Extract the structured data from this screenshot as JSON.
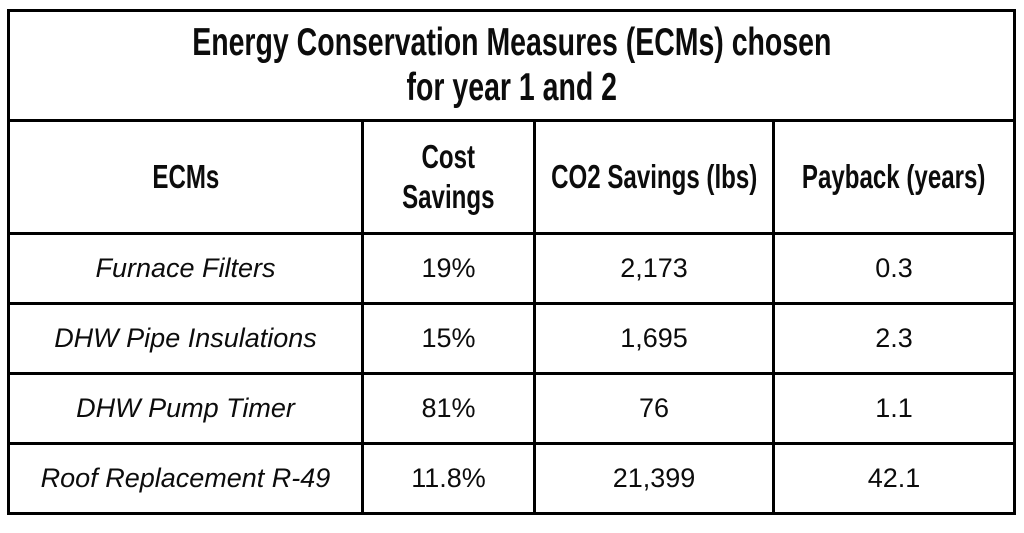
{
  "table": {
    "title": "Energy Conservation Measures (ECMs) chosen\nfor year 1 and 2",
    "headers": [
      "ECMs",
      "Cost\nSavings",
      "CO2 Savings (lbs)",
      "Payback (years)"
    ],
    "rows": [
      [
        "Furnace Filters",
        "19%",
        "2,173",
        "0.3"
      ],
      [
        "DHW Pipe Insulations",
        "15%",
        "1,695",
        "2.3"
      ],
      [
        "DHW Pump Timer",
        "81%",
        "76",
        "1.1"
      ],
      [
        "Roof Replacement R-49",
        "11.8%",
        "21,399",
        "42.1"
      ]
    ]
  },
  "chart_data": {
    "type": "table",
    "title": "Energy Conservation Measures (ECMs) chosen for year 1 and 2",
    "columns": [
      "ECMs",
      "Cost Savings",
      "CO2 Savings (lbs)",
      "Payback (years)"
    ],
    "rows": [
      {
        "ecm": "Furnace Filters",
        "cost_savings_pct": 19,
        "co2_savings_lbs": 2173,
        "payback_years": 0.3
      },
      {
        "ecm": "DHW Pipe Insulations",
        "cost_savings_pct": 15,
        "co2_savings_lbs": 1695,
        "payback_years": 2.3
      },
      {
        "ecm": "DHW Pump Timer",
        "cost_savings_pct": 81,
        "co2_savings_lbs": 76,
        "payback_years": 1.1
      },
      {
        "ecm": "Roof Replacement R-49",
        "cost_savings_pct": 11.8,
        "co2_savings_lbs": 21399,
        "payback_years": 42.1
      }
    ]
  },
  "colors": {
    "border": "#000000",
    "text": "#0c0c0c",
    "background": "#ffffff"
  }
}
